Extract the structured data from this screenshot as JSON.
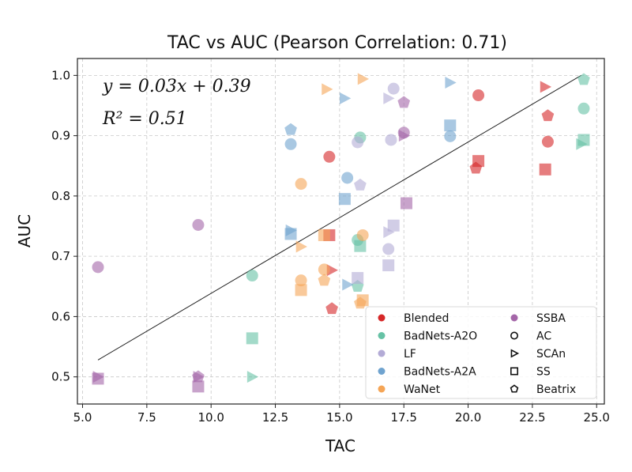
{
  "chart_data": {
    "type": "scatter",
    "title": "TAC vs AUC (Pearson Correlation: 0.71)",
    "xlabel": "TAC",
    "ylabel": "AUC",
    "xlim": [
      4.8,
      25.3
    ],
    "ylim": [
      0.455,
      1.028
    ],
    "xticks": [
      5.0,
      7.5,
      10.0,
      12.5,
      15.0,
      17.5,
      20.0,
      22.5,
      25.0
    ],
    "xtick_labels": [
      "5.0",
      "7.5",
      "10.0",
      "12.5",
      "15.0",
      "17.5",
      "20.0",
      "22.5",
      "25.0"
    ],
    "yticks": [
      0.5,
      0.6,
      0.7,
      0.8,
      0.9,
      1.0
    ],
    "ytick_labels": [
      "0.5",
      "0.6",
      "0.7",
      "0.8",
      "0.9",
      "1.0"
    ],
    "grid": true,
    "legend_position": "lower-right",
    "annotation": {
      "equation": "y = 0.03x + 0.39",
      "r2": "R² = 0.51"
    },
    "fit_line": {
      "x": [
        5.6,
        24.4
      ],
      "y": [
        0.528,
        1.0
      ]
    },
    "attack_colors": {
      "Blended": "#d62728",
      "BadNets-A2O": "#66c2a5",
      "LF": "#b3abd6",
      "BadNets-A2A": "#6fa3cf",
      "WaNet": "#f5a556",
      "SSBA": "#a466a8"
    },
    "legend_attacks": [
      "Blended",
      "BadNets-A2O",
      "LF",
      "BadNets-A2A",
      "WaNet"
    ],
    "legend_attacks_col2": [
      "SSBA"
    ],
    "legend_methods": [
      {
        "label": "AC",
        "marker": "circle"
      },
      {
        "label": "SCAn",
        "marker": "triangle"
      },
      {
        "label": "SS",
        "marker": "square"
      },
      {
        "label": "Beatrix",
        "marker": "pentagon"
      }
    ],
    "points": [
      {
        "x": 14.6,
        "y": 0.865,
        "attack": "Blended",
        "marker": "circle"
      },
      {
        "x": 20.4,
        "y": 0.967,
        "attack": "Blended",
        "marker": "circle"
      },
      {
        "x": 23.1,
        "y": 0.89,
        "attack": "Blended",
        "marker": "circle"
      },
      {
        "x": 23.0,
        "y": 0.981,
        "attack": "Blended",
        "marker": "triangle"
      },
      {
        "x": 14.7,
        "y": 0.677,
        "attack": "Blended",
        "marker": "triangle"
      },
      {
        "x": 20.4,
        "y": 0.858,
        "attack": "Blended",
        "marker": "square"
      },
      {
        "x": 23.0,
        "y": 0.844,
        "attack": "Blended",
        "marker": "square"
      },
      {
        "x": 14.6,
        "y": 0.735,
        "attack": "Blended",
        "marker": "square"
      },
      {
        "x": 14.7,
        "y": 0.613,
        "attack": "Blended",
        "marker": "pentagon"
      },
      {
        "x": 20.3,
        "y": 0.846,
        "attack": "Blended",
        "marker": "pentagon"
      },
      {
        "x": 23.1,
        "y": 0.933,
        "attack": "Blended",
        "marker": "pentagon"
      },
      {
        "x": 11.6,
        "y": 0.668,
        "attack": "BadNets-A2O",
        "marker": "circle"
      },
      {
        "x": 15.8,
        "y": 0.897,
        "attack": "BadNets-A2O",
        "marker": "circle"
      },
      {
        "x": 15.7,
        "y": 0.727,
        "attack": "BadNets-A2O",
        "marker": "circle"
      },
      {
        "x": 24.5,
        "y": 0.945,
        "attack": "BadNets-A2O",
        "marker": "circle"
      },
      {
        "x": 11.6,
        "y": 0.5,
        "attack": "BadNets-A2O",
        "marker": "triangle"
      },
      {
        "x": 24.4,
        "y": 0.886,
        "attack": "BadNets-A2O",
        "marker": "triangle"
      },
      {
        "x": 11.6,
        "y": 0.564,
        "attack": "BadNets-A2O",
        "marker": "square"
      },
      {
        "x": 15.8,
        "y": 0.717,
        "attack": "BadNets-A2O",
        "marker": "square"
      },
      {
        "x": 24.5,
        "y": 0.893,
        "attack": "BadNets-A2O",
        "marker": "square"
      },
      {
        "x": 24.5,
        "y": 0.993,
        "attack": "BadNets-A2O",
        "marker": "pentagon"
      },
      {
        "x": 15.7,
        "y": 0.65,
        "attack": "BadNets-A2O",
        "marker": "pentagon"
      },
      {
        "x": 17.1,
        "y": 0.978,
        "attack": "LF",
        "marker": "circle"
      },
      {
        "x": 17.0,
        "y": 0.893,
        "attack": "LF",
        "marker": "circle"
      },
      {
        "x": 16.9,
        "y": 0.712,
        "attack": "LF",
        "marker": "circle"
      },
      {
        "x": 15.7,
        "y": 0.889,
        "attack": "LF",
        "marker": "circle"
      },
      {
        "x": 16.9,
        "y": 0.962,
        "attack": "LF",
        "marker": "triangle"
      },
      {
        "x": 16.9,
        "y": 0.74,
        "attack": "LF",
        "marker": "triangle"
      },
      {
        "x": 15.7,
        "y": 0.664,
        "attack": "LF",
        "marker": "square"
      },
      {
        "x": 17.1,
        "y": 0.751,
        "attack": "LF",
        "marker": "square"
      },
      {
        "x": 16.9,
        "y": 0.685,
        "attack": "LF",
        "marker": "square"
      },
      {
        "x": 15.8,
        "y": 0.818,
        "attack": "LF",
        "marker": "pentagon"
      },
      {
        "x": 13.1,
        "y": 0.886,
        "attack": "BadNets-A2A",
        "marker": "circle"
      },
      {
        "x": 15.3,
        "y": 0.83,
        "attack": "BadNets-A2A",
        "marker": "circle"
      },
      {
        "x": 19.3,
        "y": 0.899,
        "attack": "BadNets-A2A",
        "marker": "circle"
      },
      {
        "x": 15.2,
        "y": 0.962,
        "attack": "BadNets-A2A",
        "marker": "triangle"
      },
      {
        "x": 13.1,
        "y": 0.743,
        "attack": "BadNets-A2A",
        "marker": "triangle"
      },
      {
        "x": 15.3,
        "y": 0.653,
        "attack": "BadNets-A2A",
        "marker": "triangle"
      },
      {
        "x": 19.3,
        "y": 0.988,
        "attack": "BadNets-A2A",
        "marker": "triangle"
      },
      {
        "x": 15.2,
        "y": 0.795,
        "attack": "BadNets-A2A",
        "marker": "square"
      },
      {
        "x": 13.1,
        "y": 0.737,
        "attack": "BadNets-A2A",
        "marker": "square"
      },
      {
        "x": 19.3,
        "y": 0.917,
        "attack": "BadNets-A2A",
        "marker": "square"
      },
      {
        "x": 13.1,
        "y": 0.91,
        "attack": "BadNets-A2A",
        "marker": "pentagon"
      },
      {
        "x": 13.5,
        "y": 0.82,
        "attack": "WaNet",
        "marker": "circle"
      },
      {
        "x": 15.9,
        "y": 0.735,
        "attack": "WaNet",
        "marker": "circle"
      },
      {
        "x": 14.4,
        "y": 0.678,
        "attack": "WaNet",
        "marker": "circle"
      },
      {
        "x": 13.5,
        "y": 0.66,
        "attack": "WaNet",
        "marker": "circle"
      },
      {
        "x": 14.5,
        "y": 0.977,
        "attack": "WaNet",
        "marker": "triangle"
      },
      {
        "x": 15.9,
        "y": 0.994,
        "attack": "WaNet",
        "marker": "triangle"
      },
      {
        "x": 13.5,
        "y": 0.716,
        "attack": "WaNet",
        "marker": "triangle"
      },
      {
        "x": 14.4,
        "y": 0.735,
        "attack": "WaNet",
        "marker": "square"
      },
      {
        "x": 13.5,
        "y": 0.644,
        "attack": "WaNet",
        "marker": "square"
      },
      {
        "x": 15.9,
        "y": 0.627,
        "attack": "WaNet",
        "marker": "square"
      },
      {
        "x": 14.4,
        "y": 0.66,
        "attack": "WaNet",
        "marker": "pentagon"
      },
      {
        "x": 15.8,
        "y": 0.622,
        "attack": "WaNet",
        "marker": "pentagon"
      },
      {
        "x": 5.6,
        "y": 0.682,
        "attack": "SSBA",
        "marker": "circle"
      },
      {
        "x": 9.5,
        "y": 0.752,
        "attack": "SSBA",
        "marker": "circle"
      },
      {
        "x": 17.5,
        "y": 0.905,
        "attack": "SSBA",
        "marker": "circle"
      },
      {
        "x": 5.6,
        "y": 0.5,
        "attack": "SSBA",
        "marker": "triangle"
      },
      {
        "x": 9.5,
        "y": 0.5,
        "attack": "SSBA",
        "marker": "triangle"
      },
      {
        "x": 17.5,
        "y": 0.9,
        "attack": "SSBA",
        "marker": "triangle"
      },
      {
        "x": 5.6,
        "y": 0.497,
        "attack": "SSBA",
        "marker": "square"
      },
      {
        "x": 9.5,
        "y": 0.484,
        "attack": "SSBA",
        "marker": "square"
      },
      {
        "x": 17.6,
        "y": 0.788,
        "attack": "SSBA",
        "marker": "square"
      },
      {
        "x": 17.5,
        "y": 0.955,
        "attack": "SSBA",
        "marker": "pentagon"
      },
      {
        "x": 9.5,
        "y": 0.5,
        "attack": "SSBA",
        "marker": "pentagon"
      }
    ]
  }
}
